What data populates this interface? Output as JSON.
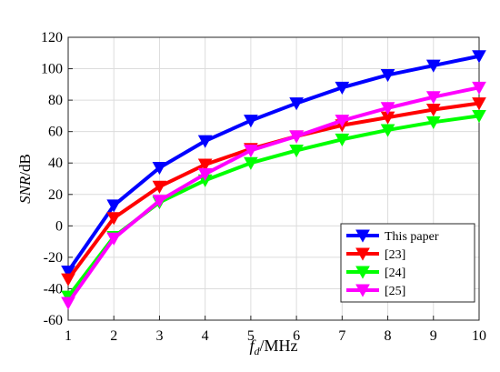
{
  "chart_data": {
    "type": "line",
    "xlabel_main": "f",
    "xlabel_sub": "d",
    "xlabel_unit": "/MHz",
    "ylabel_main": "SNR",
    "ylabel_unit": "/dB",
    "xlim": [
      1,
      10
    ],
    "ylim": [
      -60,
      120
    ],
    "xticks": [
      1,
      2,
      3,
      4,
      5,
      6,
      7,
      8,
      9,
      10
    ],
    "yticks": [
      -60,
      -40,
      -20,
      0,
      20,
      40,
      60,
      80,
      100,
      120
    ],
    "grid": true,
    "legend_position": "bottom-right",
    "x": [
      1,
      2,
      3,
      4,
      5,
      6,
      7,
      8,
      9,
      10
    ],
    "series": [
      {
        "name": "This paper",
        "color": "#0000ff",
        "values": [
          -29,
          13,
          37,
          54,
          67,
          78,
          88,
          96,
          102,
          108
        ]
      },
      {
        "name": "[23]",
        "color": "#ff0000",
        "values": [
          -34,
          5,
          25,
          39,
          49,
          57,
          64,
          69,
          74,
          78
        ]
      },
      {
        "name": "[24]",
        "color": "#00ff00",
        "values": [
          -45,
          -7,
          15,
          29,
          40,
          48,
          55,
          61,
          66,
          70
        ]
      },
      {
        "name": "[25]",
        "color": "#ff00ff",
        "values": [
          -49,
          -8,
          16,
          33,
          48,
          57,
          67,
          75,
          82,
          88
        ]
      }
    ]
  }
}
